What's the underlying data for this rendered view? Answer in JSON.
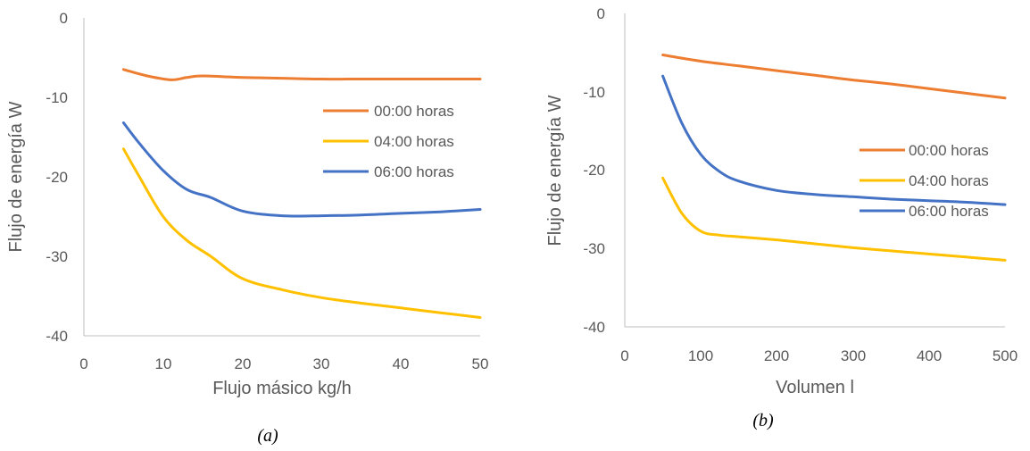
{
  "colors": {
    "orange": "#ED7D31",
    "yellow": "#FFC000",
    "blue": "#4472C4",
    "axis": "#bfbfbf",
    "text": "#595959"
  },
  "chart_data": [
    {
      "type": "line",
      "caption": "(a)",
      "xlabel": "Flujo másico kg/h",
      "ylabel": "Flujo de energía W",
      "xlim": [
        0,
        50
      ],
      "ylim": [
        -40,
        0
      ],
      "xticks": [
        "0",
        "10",
        "20",
        "30",
        "40",
        "50"
      ],
      "yticks": [
        "0",
        "-10",
        "-20",
        "-30",
        "-40"
      ],
      "legend_position": "right",
      "series": [
        {
          "name": "00:00 horas",
          "color": "#ED7D31",
          "x": [
            5,
            8,
            11,
            13,
            15,
            20,
            25,
            30,
            35,
            40,
            45,
            50
          ],
          "y": [
            -6.5,
            -7.3,
            -7.8,
            -7.5,
            -7.3,
            -7.5,
            -7.6,
            -7.7,
            -7.7,
            -7.7,
            -7.7,
            -7.7
          ]
        },
        {
          "name": "04:00 horas",
          "color": "#FFC000",
          "x": [
            5,
            7,
            10,
            13,
            16,
            20,
            25,
            30,
            35,
            40,
            45,
            50
          ],
          "y": [
            -16.5,
            -20,
            -25,
            -28,
            -30,
            -32.8,
            -34.2,
            -35.2,
            -35.9,
            -36.5,
            -37.1,
            -37.7
          ]
        },
        {
          "name": "06:00 horas",
          "color": "#4472C4",
          "x": [
            5,
            7,
            10,
            13,
            16,
            20,
            25,
            30,
            35,
            40,
            45,
            50
          ],
          "y": [
            -13.2,
            -15.8,
            -19.2,
            -21.6,
            -22.6,
            -24.3,
            -24.9,
            -24.9,
            -24.8,
            -24.6,
            -24.4,
            -24.1
          ]
        }
      ]
    },
    {
      "type": "line",
      "caption": "(b)",
      "xlabel": "Volumen l",
      "ylabel": "Flujo de energía W",
      "xlim": [
        0,
        500
      ],
      "ylim": [
        -40,
        0
      ],
      "xticks": [
        "0",
        "100",
        "200",
        "300",
        "400",
        "500"
      ],
      "yticks": [
        "0",
        "-10",
        "-20",
        "-30",
        "-40"
      ],
      "legend_position": "right",
      "series": [
        {
          "name": "00:00 horas",
          "color": "#ED7D31",
          "x": [
            50,
            100,
            150,
            200,
            250,
            300,
            350,
            400,
            450,
            500
          ],
          "y": [
            -5.3,
            -6.1,
            -6.7,
            -7.3,
            -7.9,
            -8.5,
            -9.0,
            -9.6,
            -10.2,
            -10.8
          ]
        },
        {
          "name": "04:00 horas",
          "color": "#FFC000",
          "x": [
            50,
            75,
            100,
            125,
            150,
            200,
            250,
            300,
            350,
            400,
            450,
            500
          ],
          "y": [
            -21,
            -25.5,
            -27.8,
            -28.3,
            -28.5,
            -28.9,
            -29.4,
            -29.9,
            -30.3,
            -30.7,
            -31.1,
            -31.5
          ]
        },
        {
          "name": "06:00 horas",
          "color": "#4472C4",
          "x": [
            50,
            75,
            100,
            125,
            150,
            200,
            250,
            300,
            350,
            400,
            450,
            500
          ],
          "y": [
            -8,
            -14,
            -18,
            -20.2,
            -21.4,
            -22.6,
            -23.1,
            -23.4,
            -23.7,
            -23.9,
            -24.1,
            -24.4
          ]
        }
      ]
    }
  ]
}
